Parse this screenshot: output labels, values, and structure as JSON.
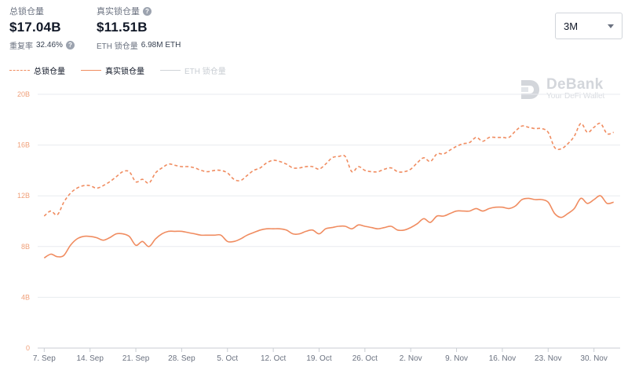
{
  "header": {
    "total": {
      "label": "总锁仓量",
      "value": "$17.04B",
      "sub_label": "重复率",
      "sub_value": "32.46%"
    },
    "real": {
      "label": "真实锁仓量",
      "value": "$11.51B",
      "sub_label": "ETH 锁仓量",
      "sub_value": "6.98M ETH"
    },
    "range": {
      "selected": "3M"
    }
  },
  "logo": {
    "name": "DeBank",
    "tagline": "Your DeFi Wallet"
  },
  "chart_data": {
    "type": "line",
    "title": "",
    "xlabel": "",
    "ylabel": "",
    "ylim": [
      0,
      20
    ],
    "y_ticks": [
      "0",
      "4B",
      "8B",
      "12B",
      "16B",
      "20B"
    ],
    "y_tick_values": [
      0,
      4,
      8,
      12,
      16,
      20
    ],
    "x_ticks": [
      "7. Sep",
      "14. Sep",
      "21. Sep",
      "28. Sep",
      "5. Oct",
      "12. Oct",
      "19. Oct",
      "26. Oct",
      "2. Nov",
      "9. Nov",
      "16. Nov",
      "23. Nov",
      "30. Nov"
    ],
    "x_tick_values": [
      0,
      7,
      14,
      21,
      28,
      35,
      42,
      49,
      56,
      63,
      70,
      77,
      84
    ],
    "x_range": [
      -1,
      88
    ],
    "grid": true,
    "legend_position": "top-left",
    "colors": {
      "total": "#f08c60",
      "real": "#f08c60",
      "eth": "#cfd3d8",
      "grid": "#e8ebef",
      "tick": "#f0a07a"
    },
    "series": [
      {
        "name": "总锁仓量",
        "style": "dashed",
        "x": [
          0,
          1,
          2,
          3,
          4,
          5,
          6,
          7,
          8,
          9,
          10,
          11,
          12,
          13,
          14,
          15,
          16,
          17,
          18,
          19,
          20,
          21,
          22,
          23,
          24,
          25,
          26,
          27,
          28,
          29,
          30,
          31,
          32,
          33,
          34,
          35,
          36,
          37,
          38,
          39,
          40,
          41,
          42,
          43,
          44,
          45,
          46,
          47,
          48,
          49,
          50,
          51,
          52,
          53,
          54,
          55,
          56,
          57,
          58,
          59,
          60,
          61,
          62,
          63,
          64,
          65,
          66,
          67,
          68,
          69,
          70,
          71,
          72,
          73,
          74,
          75,
          76,
          77,
          78,
          79,
          80,
          81,
          82,
          83,
          84,
          85,
          86,
          87
        ],
        "values": [
          10.4,
          10.8,
          10.5,
          11.5,
          12.2,
          12.6,
          12.8,
          12.8,
          12.6,
          12.8,
          13.1,
          13.5,
          13.9,
          13.9,
          13.1,
          13.3,
          13.0,
          13.8,
          14.2,
          14.5,
          14.4,
          14.3,
          14.3,
          14.2,
          14.0,
          13.9,
          14.0,
          14.0,
          13.8,
          13.3,
          13.2,
          13.6,
          14.0,
          14.2,
          14.6,
          14.8,
          14.7,
          14.5,
          14.2,
          14.2,
          14.3,
          14.3,
          14.1,
          14.5,
          15.0,
          15.1,
          15.1,
          13.9,
          14.3,
          14.0,
          13.9,
          13.9,
          14.1,
          14.2,
          13.9,
          13.9,
          14.1,
          14.6,
          15.0,
          14.7,
          15.3,
          15.3,
          15.6,
          15.9,
          16.1,
          16.2,
          16.6,
          16.3,
          16.6,
          16.6,
          16.6,
          16.6,
          17.1,
          17.5,
          17.4,
          17.3,
          17.3,
          17.0,
          15.8,
          15.7,
          16.1,
          16.7,
          17.7,
          17.0,
          17.4,
          17.7,
          16.9,
          17.0
        ]
      },
      {
        "name": "真实锁仓量",
        "style": "solid",
        "x": [
          0,
          1,
          2,
          3,
          4,
          5,
          6,
          7,
          8,
          9,
          10,
          11,
          12,
          13,
          14,
          15,
          16,
          17,
          18,
          19,
          20,
          21,
          22,
          23,
          24,
          25,
          26,
          27,
          28,
          29,
          30,
          31,
          32,
          33,
          34,
          35,
          36,
          37,
          38,
          39,
          40,
          41,
          42,
          43,
          44,
          45,
          46,
          47,
          48,
          49,
          50,
          51,
          52,
          53,
          54,
          55,
          56,
          57,
          58,
          59,
          60,
          61,
          62,
          63,
          64,
          65,
          66,
          67,
          68,
          69,
          70,
          71,
          72,
          73,
          74,
          75,
          76,
          77,
          78,
          79,
          80,
          81,
          82,
          83,
          84,
          85,
          86,
          87
        ],
        "values": [
          7.1,
          7.4,
          7.2,
          7.3,
          8.1,
          8.6,
          8.8,
          8.8,
          8.7,
          8.5,
          8.7,
          9.0,
          9.0,
          8.8,
          8.1,
          8.4,
          8.0,
          8.6,
          9.0,
          9.2,
          9.2,
          9.2,
          9.1,
          9.0,
          8.9,
          8.9,
          8.9,
          8.9,
          8.4,
          8.4,
          8.6,
          8.9,
          9.1,
          9.3,
          9.4,
          9.4,
          9.4,
          9.3,
          9.0,
          9.0,
          9.2,
          9.3,
          9.0,
          9.4,
          9.5,
          9.6,
          9.6,
          9.4,
          9.7,
          9.6,
          9.5,
          9.4,
          9.5,
          9.6,
          9.3,
          9.3,
          9.5,
          9.8,
          10.2,
          9.9,
          10.4,
          10.4,
          10.6,
          10.8,
          10.8,
          10.8,
          11.0,
          10.8,
          11.0,
          11.1,
          11.1,
          11.0,
          11.2,
          11.7,
          11.8,
          11.7,
          11.7,
          11.5,
          10.6,
          10.3,
          10.6,
          11.0,
          11.8,
          11.4,
          11.7,
          12.0,
          11.4,
          11.5
        ]
      },
      {
        "name": "ETH 锁仓量",
        "style": "solid",
        "hidden": true,
        "values": []
      }
    ]
  }
}
